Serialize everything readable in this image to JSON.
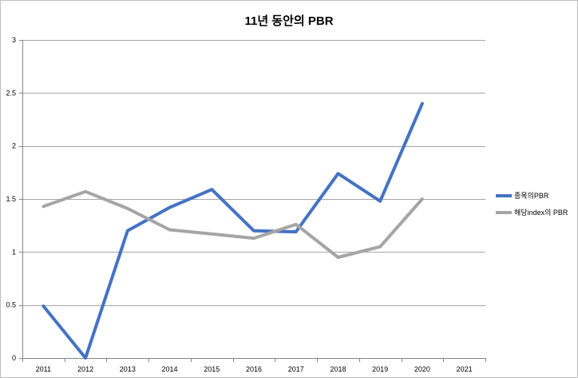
{
  "chart_data": {
    "type": "line",
    "title": "11년 동안의 PBR",
    "categories": [
      "2011",
      "2012",
      "2013",
      "2014",
      "2015",
      "2016",
      "2017",
      "2018",
      "2019",
      "2020",
      "2021"
    ],
    "series": [
      {
        "name": "종목의PBR",
        "color": "#4472C4",
        "values": [
          0.49,
          0,
          1.2,
          1.42,
          1.59,
          1.2,
          1.19,
          1.74,
          1.48,
          2.4,
          null
        ]
      },
      {
        "name": "해당index의 PBR",
        "color": "#A5A5A5",
        "values": [
          1.43,
          1.57,
          1.41,
          1.21,
          1.17,
          1.13,
          1.26,
          0.95,
          1.05,
          1.5,
          null
        ]
      }
    ],
    "ylim": [
      0,
      3
    ],
    "yticks": [
      "0",
      "0.5",
      "1",
      "1.5",
      "2",
      "2.5",
      "3"
    ],
    "grid": true,
    "legend": "right"
  }
}
